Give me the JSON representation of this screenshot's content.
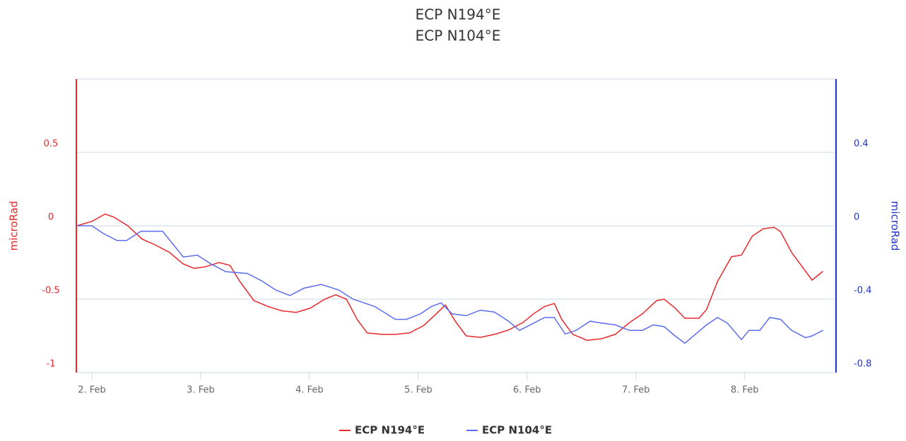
{
  "chart_data": {
    "type": "line",
    "title": "ECP N194°E",
    "subtitle": "ECP N104°E",
    "ylabel": "microRad",
    "y2label": "microRad",
    "xlim": [
      1.857,
      8.84
    ],
    "xticks": [
      {
        "value": 2,
        "label": "2. Feb"
      },
      {
        "value": 3,
        "label": "3. Feb"
      },
      {
        "value": 4,
        "label": "4. Feb"
      },
      {
        "value": 5,
        "label": "5. Feb"
      },
      {
        "value": 6,
        "label": "6. Feb"
      },
      {
        "value": 7,
        "label": "7. Feb"
      },
      {
        "value": 8,
        "label": "8. Feb"
      }
    ],
    "ylim": [
      -1,
      1
    ],
    "yticks": [
      -1,
      -0.5,
      0,
      0.5
    ],
    "y2lim": [
      -0.8,
      0.8
    ],
    "y2ticks": [
      -0.8,
      -0.4,
      0,
      0.4
    ],
    "grid": true,
    "legend": "bottom",
    "series": [
      {
        "name": "ECP N194°E",
        "color": "#e8282b",
        "axis": "y",
        "x": [
          1.86,
          2.0,
          2.12,
          2.2,
          2.33,
          2.46,
          2.58,
          2.71,
          2.84,
          2.94,
          3.04,
          3.17,
          3.27,
          3.36,
          3.49,
          3.62,
          3.75,
          3.88,
          4.01,
          4.14,
          4.24,
          4.34,
          4.44,
          4.53,
          4.66,
          4.79,
          4.92,
          5.05,
          5.15,
          5.25,
          5.34,
          5.44,
          5.57,
          5.7,
          5.83,
          5.96,
          6.06,
          6.16,
          6.25,
          6.32,
          6.42,
          6.55,
          6.68,
          6.81,
          6.94,
          7.06,
          7.19,
          7.26,
          7.36,
          7.45,
          7.58,
          7.65,
          7.75,
          7.88,
          7.97,
          8.07,
          8.17,
          8.27,
          8.33,
          8.43,
          8.56,
          8.62,
          8.72
        ],
        "values": [
          0,
          0.03,
          0.08,
          0.06,
          0.0,
          -0.09,
          -0.13,
          -0.18,
          -0.26,
          -0.29,
          -0.28,
          -0.25,
          -0.27,
          -0.38,
          -0.51,
          -0.55,
          -0.58,
          -0.59,
          -0.56,
          -0.5,
          -0.47,
          -0.5,
          -0.64,
          -0.73,
          -0.74,
          -0.74,
          -0.73,
          -0.68,
          -0.61,
          -0.54,
          -0.65,
          -0.75,
          -0.76,
          -0.74,
          -0.71,
          -0.66,
          -0.6,
          -0.55,
          -0.53,
          -0.64,
          -0.74,
          -0.78,
          -0.77,
          -0.74,
          -0.66,
          -0.6,
          -0.51,
          -0.5,
          -0.56,
          -0.63,
          -0.63,
          -0.57,
          -0.38,
          -0.21,
          -0.2,
          -0.07,
          -0.02,
          -0.01,
          -0.04,
          -0.18,
          -0.31,
          -0.37,
          -0.31
        ]
      },
      {
        "name": "ECP N104°E",
        "color": "#5a6cf0",
        "axis": "y2",
        "x": [
          1.86,
          2.0,
          2.1,
          2.23,
          2.32,
          2.45,
          2.65,
          2.84,
          2.97,
          3.1,
          3.23,
          3.43,
          3.56,
          3.69,
          3.82,
          3.95,
          4.11,
          4.27,
          4.4,
          4.6,
          4.79,
          4.89,
          5.02,
          5.12,
          5.21,
          5.31,
          5.44,
          5.57,
          5.7,
          5.83,
          5.93,
          6.03,
          6.16,
          6.25,
          6.35,
          6.45,
          6.58,
          6.68,
          6.81,
          6.94,
          7.06,
          7.16,
          7.26,
          7.36,
          7.45,
          7.55,
          7.65,
          7.75,
          7.84,
          7.97,
          8.04,
          8.14,
          8.23,
          8.33,
          8.43,
          8.56,
          8.62,
          8.72
        ],
        "values": [
          0,
          0,
          -0.04,
          -0.08,
          -0.08,
          -0.03,
          -0.03,
          -0.17,
          -0.16,
          -0.21,
          -0.25,
          -0.26,
          -0.3,
          -0.35,
          -0.38,
          -0.34,
          -0.32,
          -0.35,
          -0.4,
          -0.44,
          -0.51,
          -0.51,
          -0.48,
          -0.44,
          -0.42,
          -0.48,
          -0.49,
          -0.46,
          -0.47,
          -0.52,
          -0.57,
          -0.54,
          -0.5,
          -0.5,
          -0.59,
          -0.57,
          -0.52,
          -0.53,
          -0.54,
          -0.57,
          -0.57,
          -0.54,
          -0.55,
          -0.6,
          -0.64,
          -0.59,
          -0.54,
          -0.5,
          -0.53,
          -0.62,
          -0.57,
          -0.57,
          -0.5,
          -0.51,
          -0.57,
          -0.61,
          -0.6,
          -0.57
        ]
      }
    ]
  }
}
